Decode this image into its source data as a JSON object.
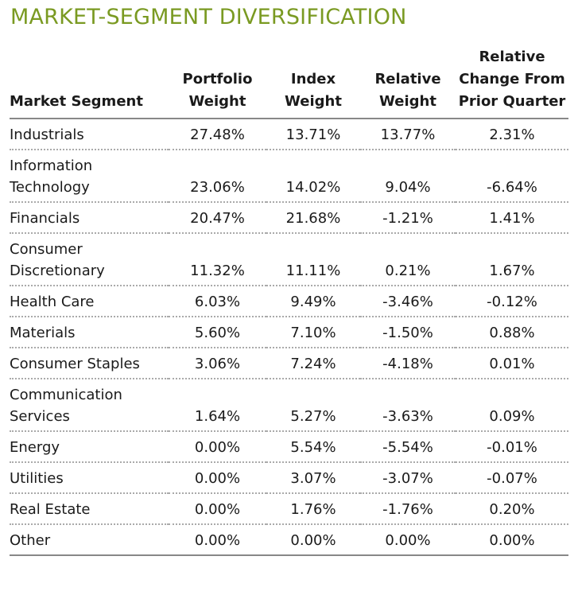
{
  "title": "MARKET-SEGMENT DIVERSIFICATION",
  "table": {
    "headers": [
      "Market Segment",
      "Portfolio Weight",
      "Index Weight",
      "Relative Weight",
      "Relative Change From Prior Quarter"
    ],
    "rows": [
      [
        "Industrials",
        "27.48%",
        "13.71%",
        "13.77%",
        "2.31%"
      ],
      [
        "Information Technology",
        "23.06%",
        "14.02%",
        "9.04%",
        "-6.64%"
      ],
      [
        "Financials",
        "20.47%",
        "21.68%",
        "-1.21%",
        "1.41%"
      ],
      [
        "Consumer Discretionary",
        "11.32%",
        "11.11%",
        "0.21%",
        "1.67%"
      ],
      [
        "Health Care",
        "6.03%",
        "9.49%",
        "-3.46%",
        "-0.12%"
      ],
      [
        "Materials",
        "5.60%",
        "7.10%",
        "-1.50%",
        "0.88%"
      ],
      [
        "Consumer Staples",
        "3.06%",
        "7.24%",
        "-4.18%",
        "0.01%"
      ],
      [
        "Communication Services",
        "1.64%",
        "5.27%",
        "-3.63%",
        "0.09%"
      ],
      [
        "Energy",
        "0.00%",
        "5.54%",
        "-5.54%",
        "-0.01%"
      ],
      [
        "Utilities",
        "0.00%",
        "3.07%",
        "-3.07%",
        "-0.07%"
      ],
      [
        "Real Estate",
        "0.00%",
        "1.76%",
        "-1.76%",
        "0.20%"
      ],
      [
        "Other",
        "0.00%",
        "0.00%",
        "0.00%",
        "0.00%"
      ]
    ]
  }
}
